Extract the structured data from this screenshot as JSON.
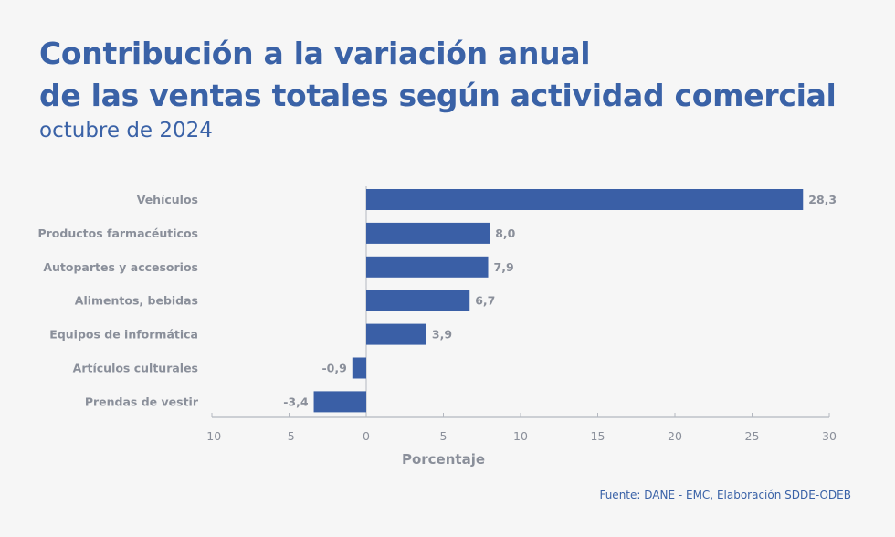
{
  "header": {
    "title_line1": "Contribución a la variación anual",
    "title_line2": "de las ventas totales según actividad comercial",
    "subtitle": "octubre de 2024"
  },
  "footer": {
    "source": "Fuente: DANE - EMC, Elaboración SDDE-ODEB"
  },
  "colors": {
    "bar": "#3a5fa6",
    "text": "#8a8f9a",
    "title": "#3a62a7",
    "axis": "#b4b8c0"
  },
  "chart_data": {
    "type": "bar",
    "orientation": "horizontal",
    "title": "Contribución a la variación anual de las ventas totales según actividad comercial",
    "subtitle": "octubre de 2024",
    "categories": [
      "Vehículos",
      "Productos farmacéuticos",
      "Autopartes y accesorios",
      "Alimentos, bebidas",
      "Equipos de informática",
      "Artículos culturales",
      "Prendas de vestir"
    ],
    "values": [
      28.3,
      8.0,
      7.9,
      6.7,
      3.9,
      -0.9,
      -3.4
    ],
    "value_labels": [
      "28,3",
      "8,0",
      "7,9",
      "6,7",
      "3,9",
      "-0,9",
      "-3,4"
    ],
    "xlabel": "Porcentaje",
    "ylabel": "",
    "xlim": [
      -10,
      30
    ],
    "xticks": [
      -10,
      -5,
      0,
      5,
      10,
      15,
      20,
      25,
      30
    ],
    "xtick_labels": [
      "-10",
      "-5",
      "0",
      "5",
      "10",
      "15",
      "20",
      "25",
      "30"
    ],
    "grid": false,
    "legend": "none",
    "source": "Fuente: DANE - EMC, Elaboración SDDE-ODEB"
  }
}
